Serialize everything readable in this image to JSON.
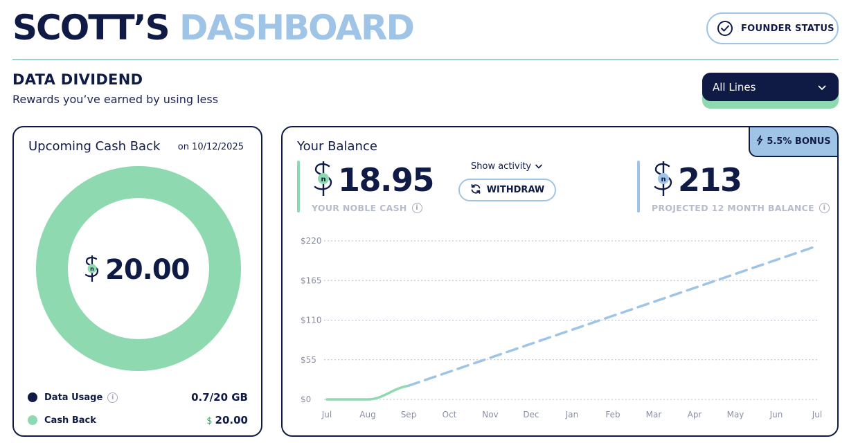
{
  "header": {
    "title_part1": "SCOTT’S",
    "title_part2": "DASHBOARD",
    "founder_label": "FOUNDER STATUS"
  },
  "section": {
    "title": "DATA DIVIDEND",
    "subtitle": "Rewards you’ve earned by using less"
  },
  "line_selector": {
    "value": "All Lines"
  },
  "cashback_card": {
    "title": "Upcoming Cash Back",
    "date": "on 10/12/2025",
    "amount": "20.00",
    "legend": [
      {
        "label": "Data Usage",
        "value": "0.7/20 GB",
        "color": "#0f1b45"
      },
      {
        "label": "Cash Back",
        "value": "20.00",
        "color": "#8fd9b0"
      }
    ],
    "cashback_fraction": 1.0
  },
  "balance_card": {
    "title": "Your Balance",
    "bonus": "5.5% BONUS",
    "noble_cash": "18.95",
    "noble_cash_label": "YOUR NOBLE CASH",
    "show_activity": "Show activity",
    "withdraw": "WITHDRAW",
    "projected": "213",
    "projected_label": "PROJECTED 12 MONTH BALANCE"
  },
  "colors": {
    "navy": "#0f1b45",
    "green": "#8fd9b0",
    "light_blue": "#9fc4e6"
  },
  "chart_data": {
    "type": "line",
    "x": [
      "Jul",
      "Aug",
      "Sep",
      "Oct",
      "Nov",
      "Dec",
      "Jan",
      "Feb",
      "Mar",
      "Apr",
      "May",
      "Jun",
      "Jul"
    ],
    "y_ticks": [
      "$220",
      "$165",
      "$110",
      "$55",
      "$0"
    ],
    "ylim": [
      0,
      220
    ],
    "grid": true,
    "series": [
      {
        "style": "solid",
        "color": "#8fd9b0",
        "points": [
          [
            0,
            0
          ],
          [
            1,
            0
          ],
          [
            1.2,
            2
          ],
          [
            2,
            19
          ]
        ]
      },
      {
        "style": "dashed",
        "color": "#9fc4e6",
        "points": [
          [
            2,
            19
          ],
          [
            12,
            213
          ]
        ]
      }
    ]
  }
}
